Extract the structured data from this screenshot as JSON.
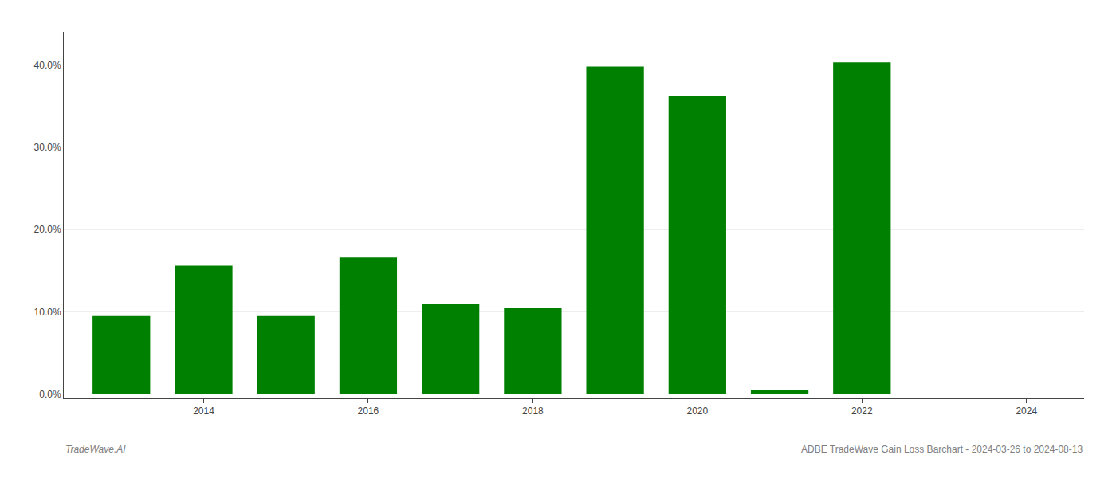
{
  "chart_data": {
    "type": "bar",
    "x": [
      2013,
      2014,
      2015,
      2016,
      2017,
      2018,
      2019,
      2020,
      2021,
      2022,
      2023
    ],
    "values": [
      0.095,
      0.156,
      0.095,
      0.166,
      0.11,
      0.105,
      0.398,
      0.362,
      0.005,
      0.403,
      0.0
    ],
    "color": "#008000",
    "xlim": [
      2012.3,
      2024.7
    ],
    "xticks": [
      2014,
      2016,
      2018,
      2020,
      2022,
      2024
    ],
    "ylim": [
      -0.005,
      0.44
    ],
    "yticks": [
      {
        "value": 0.0,
        "label": "0.0%"
      },
      {
        "value": 0.1,
        "label": "10.0%"
      },
      {
        "value": 0.2,
        "label": "20.0%"
      },
      {
        "value": 0.3,
        "label": "30.0%"
      },
      {
        "value": 0.4,
        "label": "40.0%"
      }
    ],
    "grid": true,
    "annotations": [
      "TradeWave.AI",
      "ADBE TradeWave Gain Loss Barchart - 2024-03-26 to 2024-08-13"
    ]
  }
}
